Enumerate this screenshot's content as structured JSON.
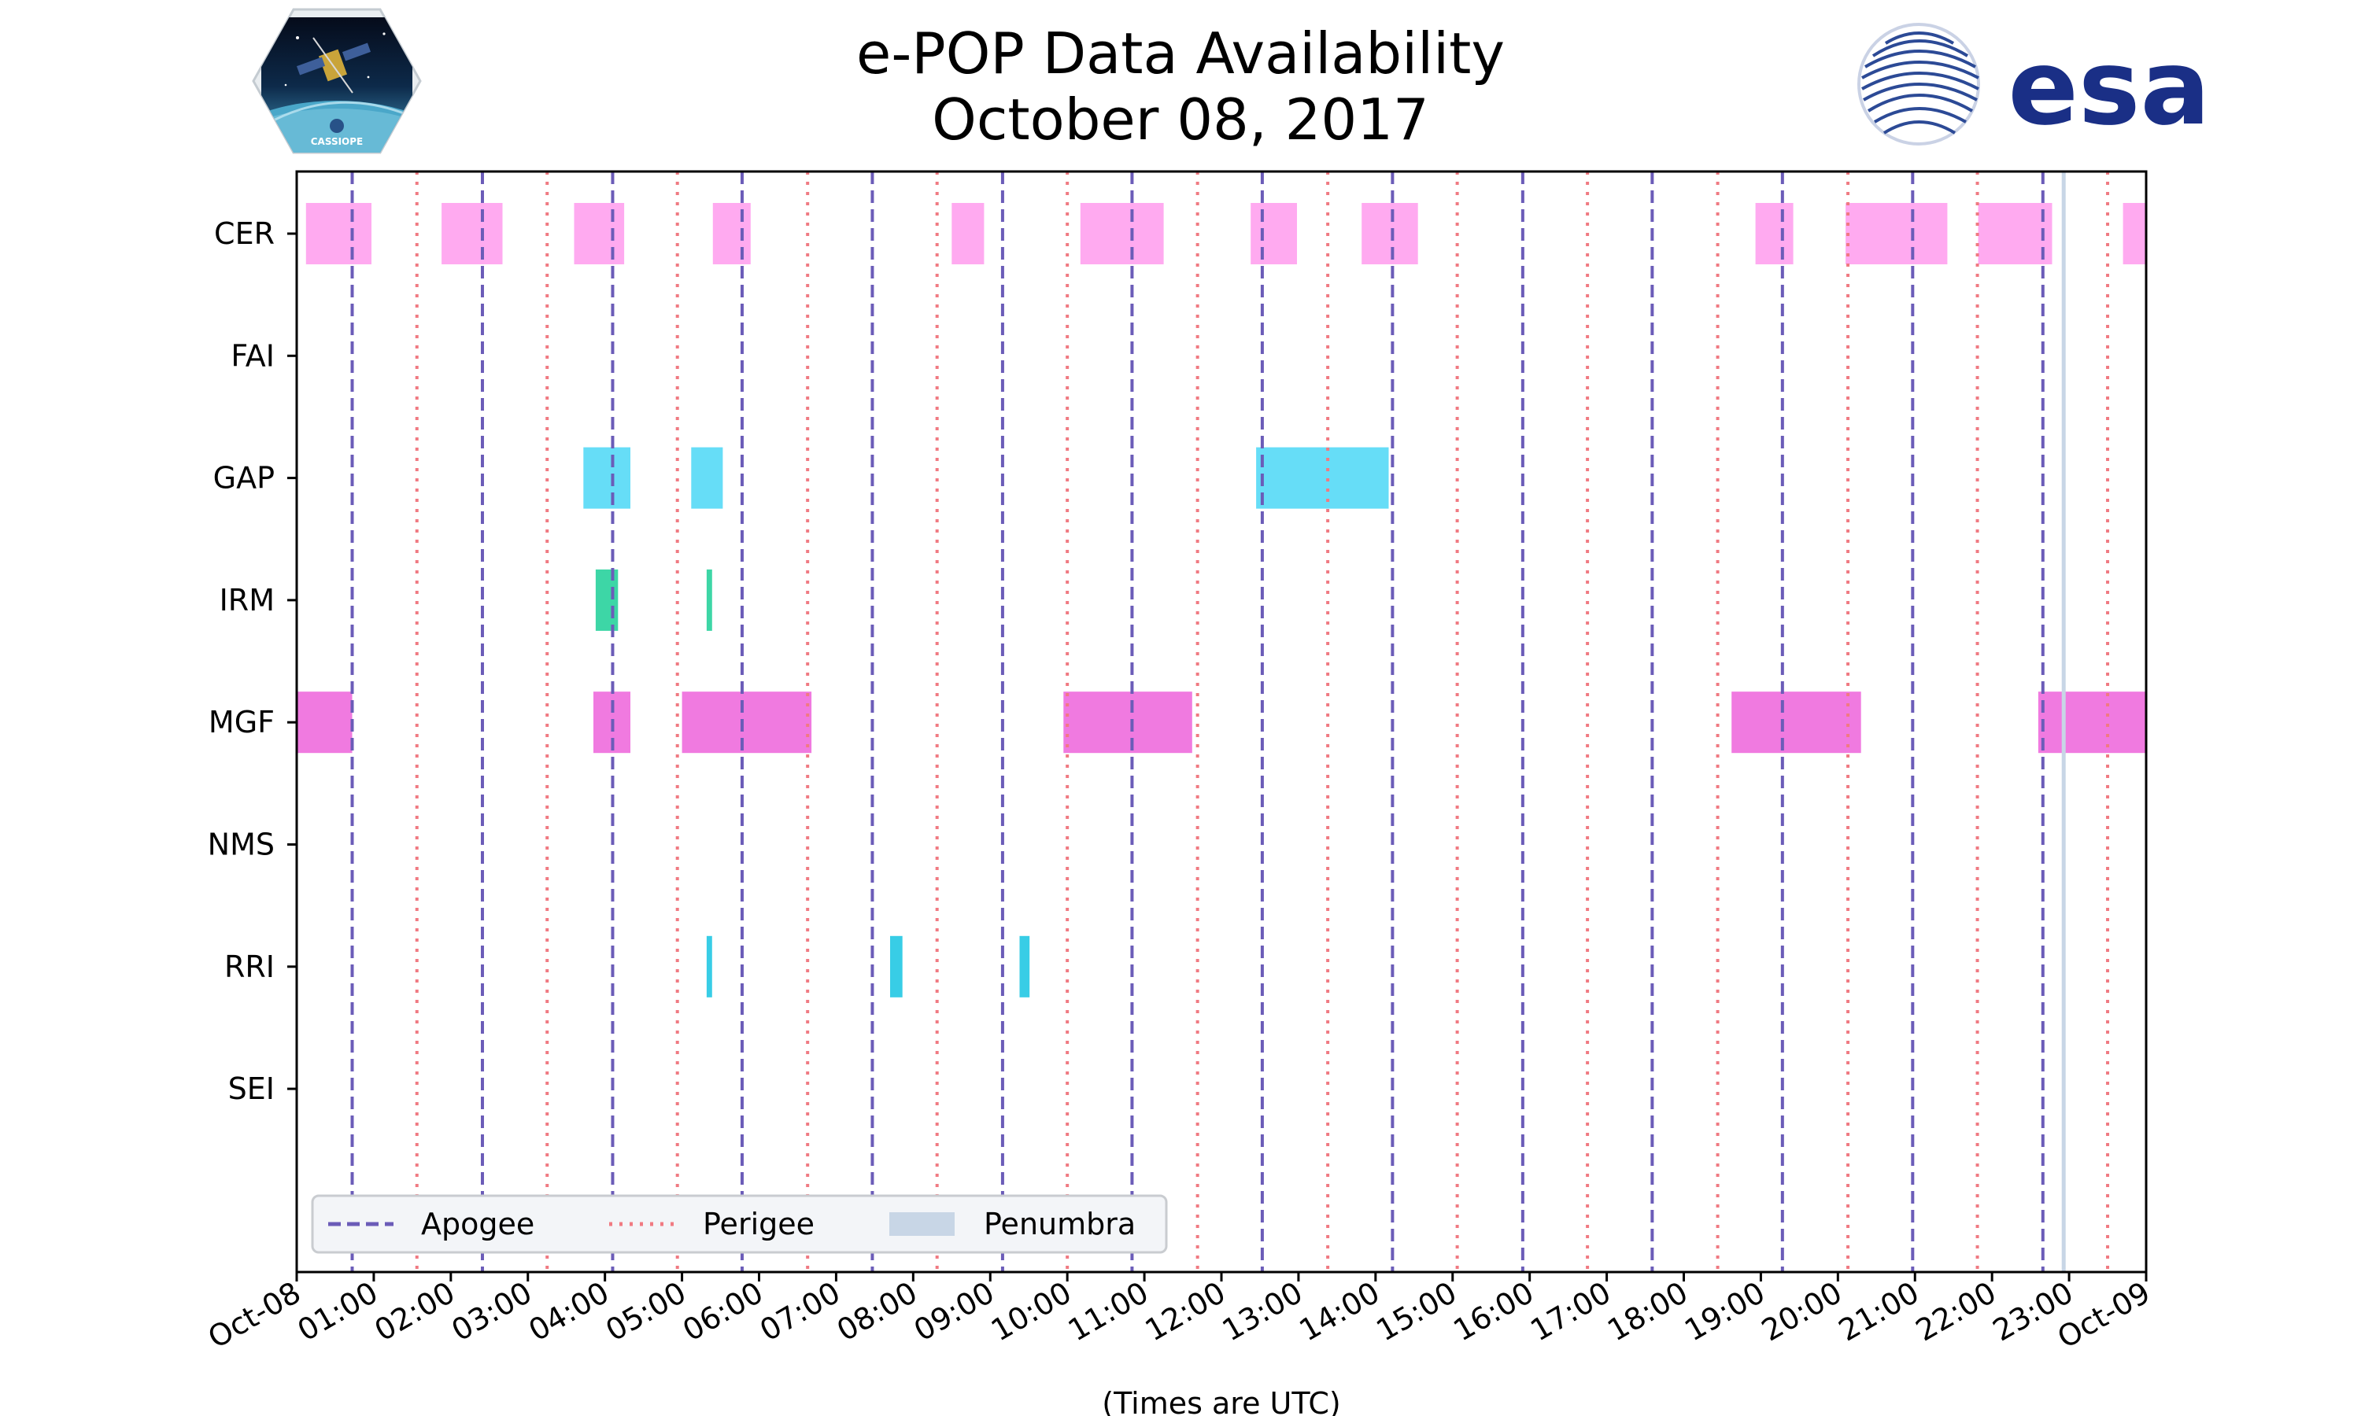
{
  "chart_data": {
    "type": "timeline",
    "title": "e-POP Data Availability",
    "subtitle": "October 08, 2017",
    "xlabel": "(Times are UTC)",
    "ylabel": "",
    "x_unit": "hours UTC",
    "xlim": [
      0,
      24
    ],
    "x_tick_labels": [
      "Oct-08",
      "01:00",
      "02:00",
      "03:00",
      "04:00",
      "05:00",
      "06:00",
      "07:00",
      "08:00",
      "09:00",
      "10:00",
      "11:00",
      "12:00",
      "13:00",
      "14:00",
      "15:00",
      "16:00",
      "17:00",
      "18:00",
      "19:00",
      "20:00",
      "21:00",
      "22:00",
      "23:00",
      "Oct-09"
    ],
    "instruments": [
      "CER",
      "FAI",
      "GAP",
      "IRM",
      "MGF",
      "NMS",
      "RRI",
      "SEI"
    ],
    "colors": {
      "CER": "#ffaaf0",
      "FAI": "#ffaaf0",
      "GAP": "#66ddf7",
      "IRM": "#3dd6a6",
      "MGF": "#f07ae0",
      "NMS": "#f07ae0",
      "RRI": "#38cde6",
      "SEI": "#38cde6",
      "apogee": "#6b5cb8",
      "perigee": "#f07a82",
      "penumbra": "#c8d6e6"
    },
    "availability": {
      "CER": [
        [
          0.12,
          0.97
        ],
        [
          1.88,
          2.67
        ],
        [
          3.6,
          4.25
        ],
        [
          5.4,
          5.89
        ],
        [
          8.5,
          8.92
        ],
        [
          10.17,
          11.25
        ],
        [
          12.38,
          12.98
        ],
        [
          13.82,
          14.55
        ],
        [
          18.93,
          19.42
        ],
        [
          20.1,
          21.42
        ],
        [
          21.82,
          22.78
        ],
        [
          23.7,
          24.0
        ]
      ],
      "FAI": [],
      "GAP": [
        [
          3.72,
          4.33
        ],
        [
          5.12,
          5.53
        ],
        [
          12.45,
          14.17
        ]
      ],
      "IRM": [
        [
          3.88,
          4.17
        ],
        [
          5.32,
          5.39
        ]
      ],
      "MGF": [
        [
          0.0,
          0.72
        ],
        [
          3.85,
          4.33
        ],
        [
          5.0,
          6.68
        ],
        [
          9.95,
          11.62
        ],
        [
          18.62,
          20.3
        ],
        [
          22.6,
          24.0
        ]
      ],
      "NMS": [],
      "RRI": [
        [
          5.32,
          5.39
        ],
        [
          7.7,
          7.86
        ],
        [
          9.38,
          9.51
        ]
      ],
      "SEI": []
    },
    "apogee_times": [
      0.72,
      2.41,
      4.1,
      5.78,
      7.47,
      9.16,
      10.84,
      12.53,
      14.22,
      15.91,
      17.59,
      19.28,
      20.97,
      22.66
    ],
    "perigee_times": [
      1.56,
      3.25,
      4.94,
      6.63,
      8.31,
      10.0,
      11.69,
      13.38,
      15.06,
      16.75,
      18.44,
      20.13,
      21.81,
      23.5
    ],
    "penumbra_times": [
      22.93
    ],
    "legend": {
      "position": "lower-left",
      "entries": [
        "Apogee",
        "Perigee",
        "Penumbra"
      ]
    }
  },
  "logos": {
    "cassiope_text": "CASSIOPE",
    "esa_text": "esa"
  }
}
